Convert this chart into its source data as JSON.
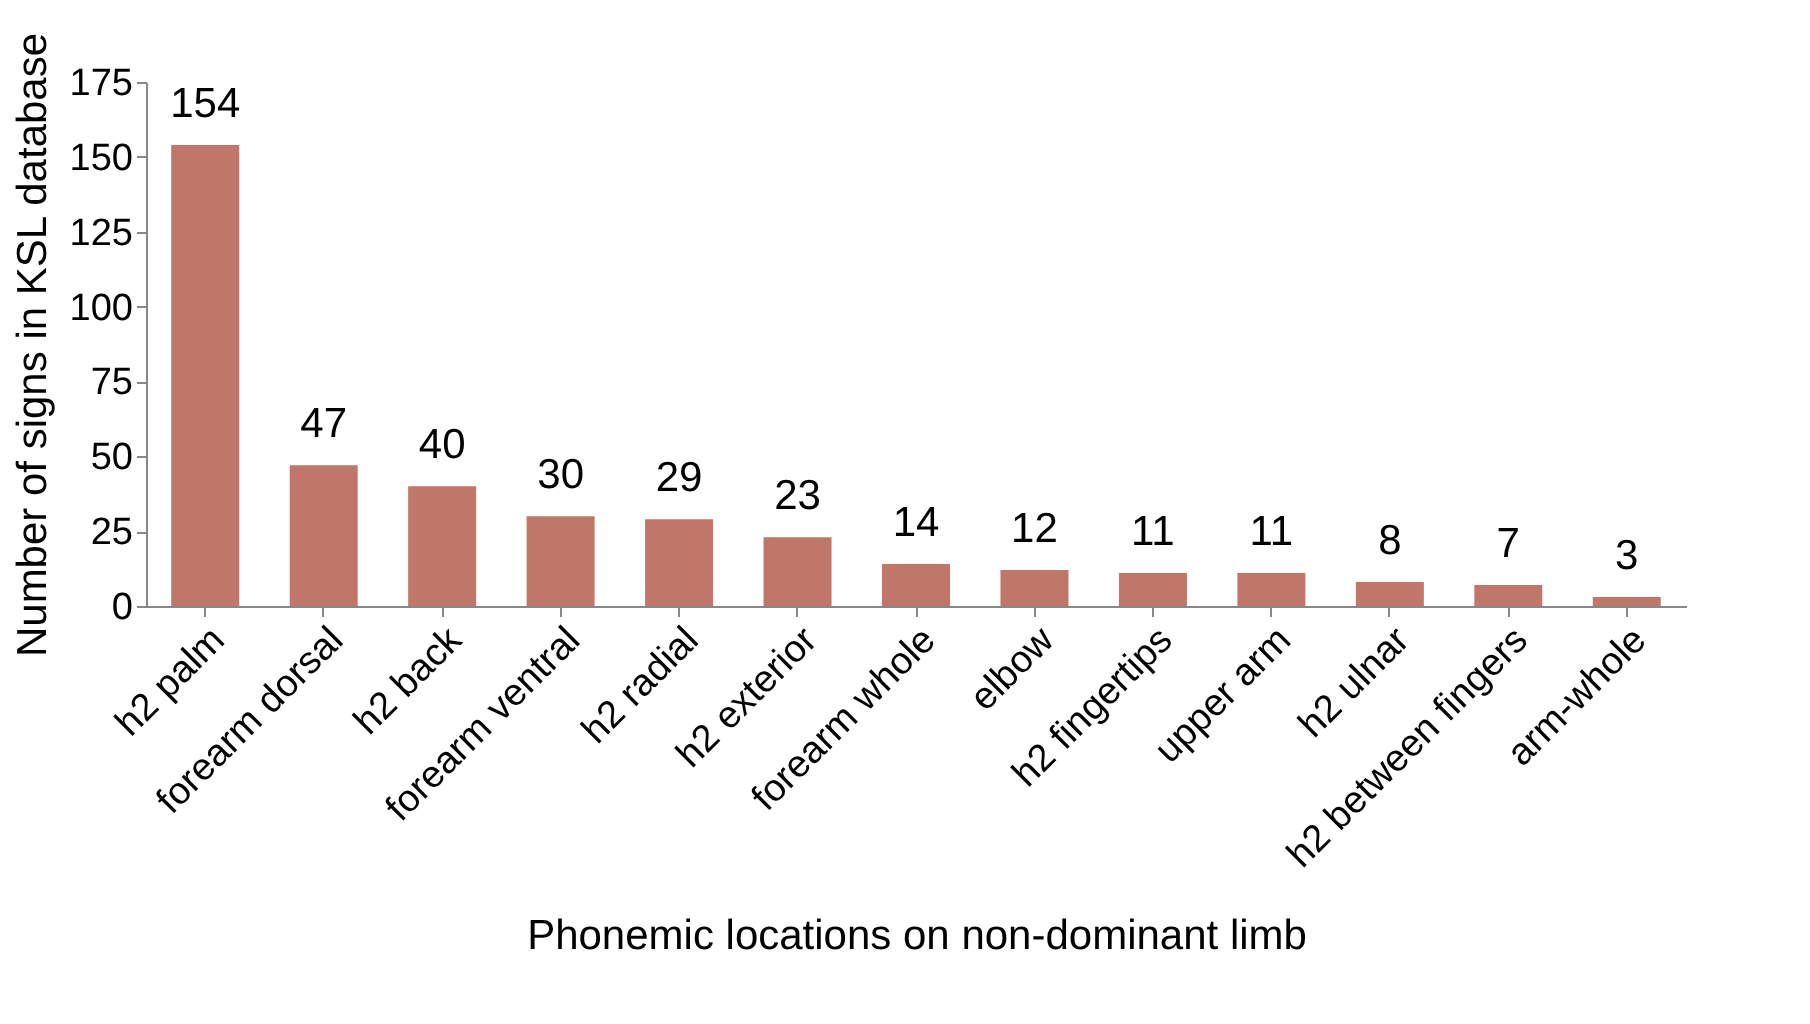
{
  "chart_data": {
    "type": "bar",
    "xlabel": "Phonemic locations on non-dominant limb",
    "ylabel": "Number of signs  in KSL database",
    "categories": [
      "h2 palm",
      "forearm dorsal",
      "h2 back",
      "forearm ventral",
      "h2 radial",
      "h2 exterior",
      "forearm whole",
      "elbow",
      "h2 fingertips",
      "upper arm",
      "h2 ulnar",
      "h2 between fingers",
      "arm-whole"
    ],
    "values": [
      154,
      47,
      40,
      30,
      29,
      23,
      14,
      12,
      11,
      11,
      8,
      7,
      3
    ],
    "color": "#c0776a",
    "ylim": [
      0,
      175
    ],
    "yticks": [
      0,
      25,
      50,
      75,
      100,
      125,
      150,
      175
    ],
    "grid": false,
    "data_labels": true
  }
}
